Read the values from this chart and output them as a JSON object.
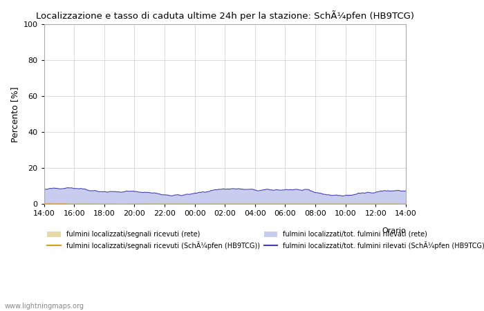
{
  "title": "Localizzazione e tasso di caduta ultime 24h per la stazione: SchÃ¼pfen (HB9TCG)",
  "ylabel": "Percento [%]",
  "ylim": [
    0,
    100
  ],
  "yticks": [
    0,
    20,
    40,
    60,
    80,
    100
  ],
  "xtick_labels": [
    "14:00",
    "16:00",
    "18:00",
    "20:00",
    "22:00",
    "00:00",
    "02:00",
    "04:00",
    "06:00",
    "08:00",
    "10:00",
    "12:00",
    "14:00"
  ],
  "background_color": "#ffffff",
  "plot_bg_color": "#ffffff",
  "grid_color": "#cccccc",
  "fill_color_rete": "#e8d9a8",
  "fill_color_station": "#c8ccee",
  "line_color_rete": "#d4a020",
  "line_color_station": "#4040b0",
  "watermark": "www.lightningmaps.org",
  "legend_labels": [
    "fulmini localizzati/segnali ricevuti (rete)",
    "fulmini localizzati/segnali ricevuti (SchÃ¼pfen (HB9TCG))",
    "fulmini localizzati/tot. fulmini rilevati (rete)",
    "fulmini localizzati/tot. fulmini rilevati (SchÃ¼pfen (HB9TCG))"
  ],
  "orario_label": "Orario"
}
